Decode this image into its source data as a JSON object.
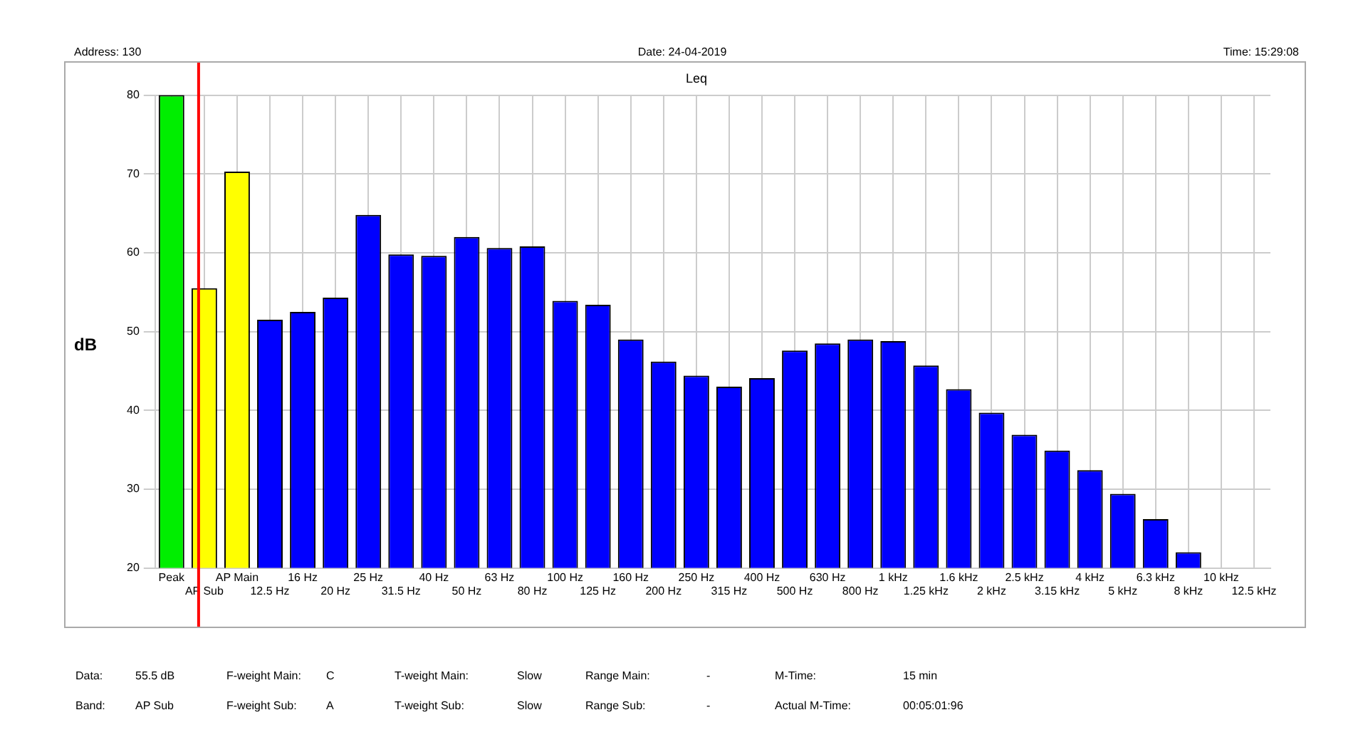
{
  "chart_data": {
    "type": "bar",
    "title": "Leq",
    "ylabel": "dB",
    "categories": [
      "Peak",
      "AP Sub",
      "AP Main",
      "12.5 Hz",
      "16 Hz",
      "20 Hz",
      "25 Hz",
      "31.5 Hz",
      "40 Hz",
      "50 Hz",
      "63 Hz",
      "80 Hz",
      "100 Hz",
      "125 Hz",
      "160 Hz",
      "200 Hz",
      "250 Hz",
      "315 Hz",
      "400 Hz",
      "500 Hz",
      "630 Hz",
      "800 Hz",
      "1 kHz",
      "1.25 kHz",
      "1.6 kHz",
      "2 kHz",
      "2.5 kHz",
      "3.15 kHz",
      "4 kHz",
      "5 kHz",
      "6.3 kHz",
      "8 kHz",
      "10 kHz",
      "12.5 kHz"
    ],
    "values": [
      80,
      55.5,
      70.3,
      51.5,
      52.5,
      54.3,
      64.8,
      59.8,
      59.6,
      62,
      60.6,
      60.8,
      53.9,
      53.4,
      49,
      46.2,
      44.4,
      43,
      44.1,
      47.6,
      48.5,
      49,
      48.8,
      45.7,
      42.7,
      39.7,
      36.9,
      34.9,
      32.4,
      29.4,
      26.2,
      22,
      null,
      null
    ],
    "colors": [
      "#00ee00",
      "#ffff00",
      "#ffff00",
      "#0000ff",
      "#0000ff",
      "#0000ff",
      "#0000ff",
      "#0000ff",
      "#0000ff",
      "#0000ff",
      "#0000ff",
      "#0000ff",
      "#0000ff",
      "#0000ff",
      "#0000ff",
      "#0000ff",
      "#0000ff",
      "#0000ff",
      "#0000ff",
      "#0000ff",
      "#0000ff",
      "#0000ff",
      "#0000ff",
      "#0000ff",
      "#0000ff",
      "#0000ff",
      "#0000ff",
      "#0000ff",
      "#0000ff",
      "#0000ff",
      "#0000ff",
      "#0000ff",
      "#0000ff",
      "#0000ff"
    ],
    "ylim": [
      20,
      80
    ],
    "yticks": [
      20,
      30,
      40,
      50,
      60,
      70,
      80
    ],
    "grid": true,
    "ref_lines": [
      {
        "axis": "x",
        "value": "AP Sub",
        "color": "#ff0000"
      }
    ],
    "annotations": [
      "Address: 130",
      "Date: 24-04-2019",
      "Time: 15:29:08",
      "Data:",
      "55.5 dB",
      "F-weight Main:",
      "C",
      "T-weight Main:",
      "Slow",
      "Range Main:",
      "-",
      "M-Time:",
      "15 min",
      "Band:",
      "AP Sub",
      "F-weight Sub:",
      "A",
      "T-weight Sub:",
      "Slow",
      "Range Sub:",
      "-",
      "Actual M-Time:",
      "00:05:01:96"
    ]
  }
}
